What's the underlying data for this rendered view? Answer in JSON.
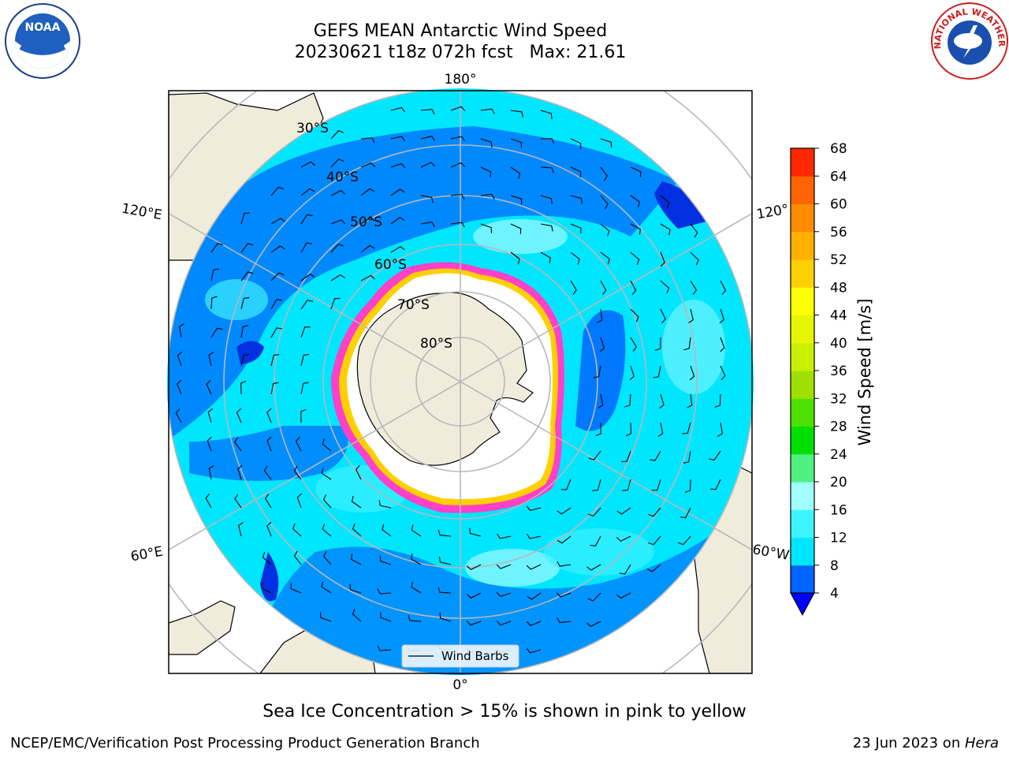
{
  "title": {
    "line1": "GEFS MEAN Antarctic Wind Speed",
    "line2": "20230621 t18z 072h fcst   Max: 21.61"
  },
  "map": {
    "projection": "south-polar-stereographic",
    "longitude_labels": [
      "180°",
      "120°E",
      "120°",
      "60°E",
      "60°W",
      "0°"
    ],
    "latitude_labels": [
      "30°S",
      "40°S",
      "50°S",
      "60°S",
      "70°S",
      "80°S"
    ],
    "legend_label": "Wind Barbs",
    "colors": {
      "land": "#efecdc",
      "ocean_4_8": "#0078ff",
      "ocean_8_12": "#00e6ff",
      "ocean_12_16": "#3cf0ff",
      "ocean_16_20": "#9cf8ff",
      "sea_ice_edge": "#ff40c8",
      "sea_ice_inner": "#ffd000",
      "grid": "#b8b8b8"
    }
  },
  "colorbar": {
    "label": "Wind Speed [m/s]",
    "ticks": [
      "4",
      "8",
      "12",
      "16",
      "20",
      "24",
      "28",
      "32",
      "36",
      "40",
      "44",
      "48",
      "52",
      "56",
      "60",
      "64",
      "68"
    ],
    "colors": [
      "#0064ff",
      "#00e6ff",
      "#3cf5ff",
      "#a0ffff",
      "#50f080",
      "#00e000",
      "#50e000",
      "#a0e000",
      "#c8f000",
      "#e6f500",
      "#ffff00",
      "#ffd000",
      "#ffb000",
      "#ff8c00",
      "#ff6400",
      "#ff2800"
    ],
    "extend_color": "#0000ff"
  },
  "caption": "Sea Ice Concentration > 15% is shown in pink to yellow",
  "footer": {
    "left": "NCEP/EMC/Verification Post Processing Product Generation Branch",
    "right_date": "23 Jun 2023 on ",
    "right_host": "Hera"
  },
  "logos": {
    "noaa": "NOAA",
    "nws_arc": "NATIONAL WEATHER SERVICE"
  }
}
